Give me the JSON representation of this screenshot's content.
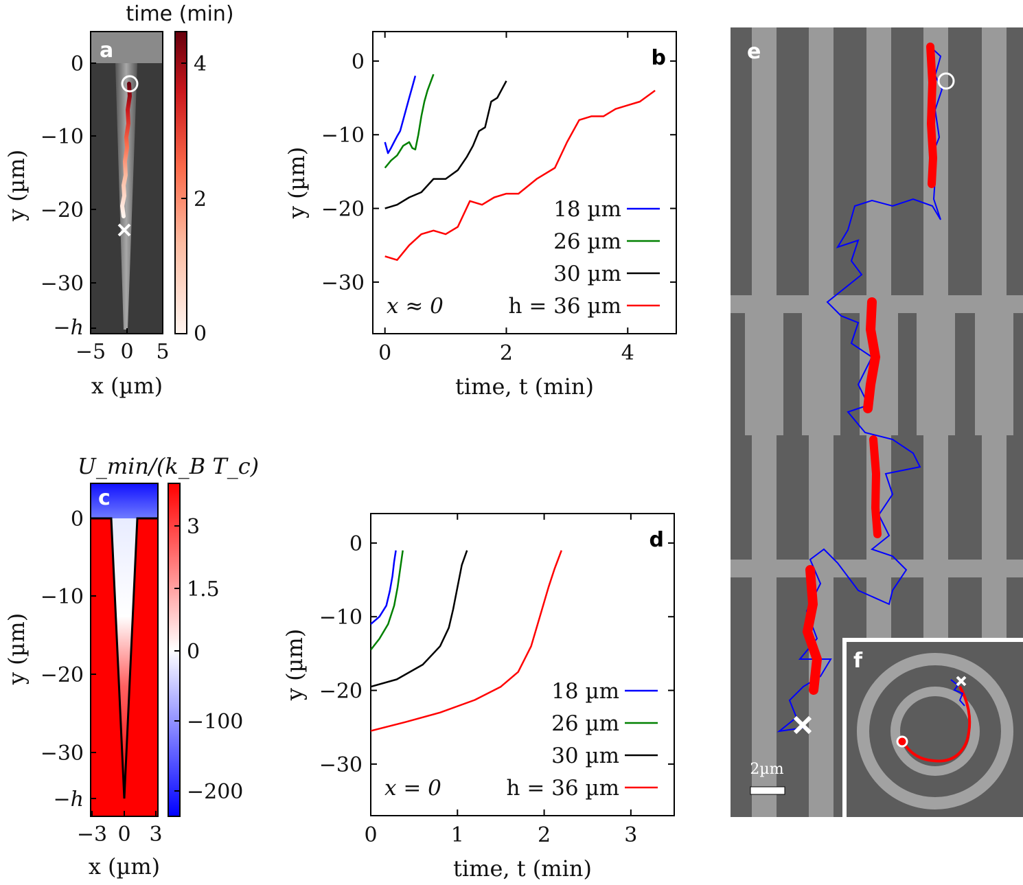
{
  "panels": {
    "a": {
      "label": "a",
      "colorbar_title": "time (min)",
      "xlabel": "x (µm)",
      "ylabel": "y (µm)",
      "xticks": [
        "−5",
        "0",
        "5"
      ],
      "yticks": [
        "0",
        "−10",
        "−20",
        "−30",
        "−h"
      ],
      "cbar_ticks": [
        "4",
        "2",
        "0"
      ]
    },
    "c": {
      "label": "c",
      "colorbar_title": "U_min/(k_B T_c)",
      "xlabel": "x (µm)",
      "ylabel": "y (µm)",
      "xticks": [
        "−3",
        "0",
        "3"
      ],
      "yticks": [
        "0",
        "−10",
        "−20",
        "−30",
        "−h"
      ],
      "cbar_ticks": [
        "3",
        "1.5",
        "0",
        "−100",
        "−200"
      ]
    },
    "e": {
      "label": "e",
      "scalebar": "2µm"
    },
    "f": {
      "label": "f"
    }
  },
  "chart_data": [
    {
      "id": "b",
      "type": "line",
      "label": "b",
      "xlabel": "time, t (min)",
      "ylabel": "y (µm)",
      "annotation": "x ≈ 0",
      "xlim": [
        -0.2,
        4.8
      ],
      "ylim": [
        -37,
        4
      ],
      "xticks": [
        0,
        2,
        4
      ],
      "yticks": [
        0,
        -10,
        -20,
        -30
      ],
      "series": [
        {
          "name": "18 µm",
          "color": "#0000ff",
          "t": [
            0,
            0.05,
            0.1,
            0.15,
            0.2,
            0.25,
            0.3,
            0.35,
            0.4,
            0.45,
            0.5
          ],
          "y": [
            -11,
            -12.5,
            -11.8,
            -11,
            -10.2,
            -9.5,
            -8,
            -6.5,
            -5,
            -3.5,
            -2
          ]
        },
        {
          "name": "26 µm",
          "color": "#008000",
          "t": [
            0,
            0.1,
            0.2,
            0.3,
            0.4,
            0.45,
            0.5,
            0.55,
            0.6,
            0.65,
            0.7,
            0.8
          ],
          "y": [
            -14.5,
            -13.5,
            -12.8,
            -11.5,
            -11,
            -11.8,
            -12,
            -10,
            -7.5,
            -5.5,
            -4,
            -1.8
          ]
        },
        {
          "name": "30 µm",
          "color": "#000000",
          "t": [
            0,
            0.2,
            0.4,
            0.6,
            0.8,
            1.0,
            1.2,
            1.35,
            1.45,
            1.55,
            1.65,
            1.75,
            1.85,
            2.0
          ],
          "y": [
            -20,
            -19.5,
            -18.5,
            -17.8,
            -16,
            -16,
            -14.8,
            -13,
            -11.5,
            -9.5,
            -9,
            -5.5,
            -5,
            -2.7
          ]
        },
        {
          "name": "h = 36 µm",
          "color": "#ff0000",
          "t": [
            0,
            0.2,
            0.4,
            0.6,
            0.8,
            1.0,
            1.2,
            1.4,
            1.6,
            1.8,
            2.0,
            2.2,
            2.5,
            2.8,
            3.0,
            3.2,
            3.4,
            3.6,
            3.8,
            4.0,
            4.2,
            4.45
          ],
          "y": [
            -26.5,
            -27,
            -25,
            -23.5,
            -23,
            -23.5,
            -22.5,
            -19,
            -19.5,
            -18.5,
            -18,
            -18,
            -16,
            -14.5,
            -11,
            -8,
            -7.5,
            -7.5,
            -6.5,
            -6,
            -5.5,
            -4
          ]
        }
      ]
    },
    {
      "id": "d",
      "type": "line",
      "label": "d",
      "xlabel": "time, t (min)",
      "ylabel": "y (µm)",
      "annotation": "x = 0",
      "xlim": [
        0,
        3.5
      ],
      "ylim": [
        -37,
        4
      ],
      "xticks": [
        0,
        1,
        2,
        3
      ],
      "yticks": [
        0,
        -10,
        -20,
        -30
      ],
      "series": [
        {
          "name": "18 µm",
          "color": "#0000ff",
          "t": [
            0,
            0.1,
            0.18,
            0.22,
            0.25,
            0.27,
            0.29
          ],
          "y": [
            -11,
            -10,
            -8.5,
            -6.5,
            -4.5,
            -2.5,
            -1
          ]
        },
        {
          "name": "26 µm",
          "color": "#008000",
          "t": [
            0,
            0.1,
            0.2,
            0.27,
            0.31,
            0.34,
            0.37
          ],
          "y": [
            -14.5,
            -13,
            -11,
            -8.5,
            -6,
            -3.5,
            -1
          ]
        },
        {
          "name": "30 µm",
          "color": "#000000",
          "t": [
            0,
            0.3,
            0.6,
            0.8,
            0.9,
            0.95,
            1.0,
            1.05,
            1.11
          ],
          "y": [
            -19.5,
            -18.5,
            -16.5,
            -14,
            -11.5,
            -9,
            -6,
            -3,
            -1
          ]
        },
        {
          "name": "h = 36 µm",
          "color": "#ff0000",
          "t": [
            0,
            0.4,
            0.8,
            1.2,
            1.5,
            1.7,
            1.85,
            1.95,
            2.05,
            2.12,
            2.2
          ],
          "y": [
            -25.5,
            -24.3,
            -23,
            -21.3,
            -19.5,
            -17.5,
            -14,
            -10,
            -6,
            -3.5,
            -1
          ]
        }
      ]
    }
  ]
}
